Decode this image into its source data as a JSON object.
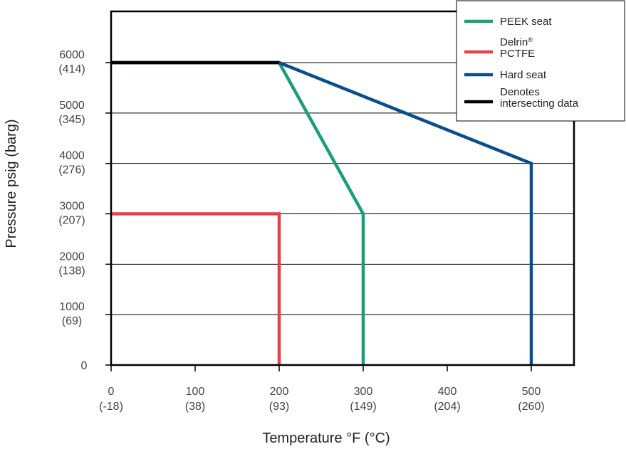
{
  "chart_data": {
    "type": "line",
    "xlabel": "Temperature °F (°C)",
    "ylabel": "Pressure psig (barg)",
    "xlim": [
      0,
      550
    ],
    "ylim": [
      0,
      7200
    ],
    "grid": "horizontal",
    "legend_placement": "top-right",
    "x_ticks": [
      {
        "value": 0,
        "line1": "0",
        "line2": "(-18)"
      },
      {
        "value": 100,
        "line1": "100",
        "line2": "(38)"
      },
      {
        "value": 200,
        "line1": "200",
        "line2": "(93)"
      },
      {
        "value": 300,
        "line1": "300",
        "line2": "(149)"
      },
      {
        "value": 400,
        "line1": "400",
        "line2": "(204)"
      },
      {
        "value": 500,
        "line1": "500",
        "line2": "(260)"
      }
    ],
    "y_ticks": [
      {
        "value": 0,
        "line1": "0",
        "line2": ""
      },
      {
        "value": 1000,
        "line1": "1000",
        "line2": "(69)"
      },
      {
        "value": 2000,
        "line1": "2000",
        "line2": "(138)"
      },
      {
        "value": 3000,
        "line1": "3000",
        "line2": "(207)"
      },
      {
        "value": 4000,
        "line1": "4000",
        "line2": "(276)"
      },
      {
        "value": 5000,
        "line1": "5000",
        "line2": "(345)"
      },
      {
        "value": 6000,
        "line1": "6000",
        "line2": "(414)"
      }
    ],
    "series": [
      {
        "key": "peek",
        "color": "#1a9e78",
        "points": [
          [
            0,
            6000
          ],
          [
            200,
            6000
          ],
          [
            300,
            3000
          ],
          [
            300,
            0
          ]
        ]
      },
      {
        "key": "delrin",
        "color": "#e8404a",
        "points": [
          [
            0,
            3000
          ],
          [
            200,
            3000
          ],
          [
            200,
            0
          ]
        ]
      },
      {
        "key": "hard",
        "color": "#0a4d8c",
        "points": [
          [
            0,
            6000
          ],
          [
            200,
            6000
          ],
          [
            500,
            4000
          ],
          [
            500,
            0
          ]
        ]
      },
      {
        "key": "intersect",
        "color": "#000000",
        "points": [
          [
            0,
            6000
          ],
          [
            200,
            6000
          ]
        ]
      }
    ],
    "legend": [
      {
        "key": "peek",
        "color": "#1a9e78",
        "lines": [
          "PEEK seat"
        ],
        "sup": ""
      },
      {
        "key": "delrin",
        "color": "#e8404a",
        "lines": [
          "Delrin",
          "PCTFE"
        ],
        "sup": "®"
      },
      {
        "key": "hard",
        "color": "#0a4d8c",
        "lines": [
          "Hard seat"
        ],
        "sup": ""
      },
      {
        "key": "intersect",
        "color": "#000000",
        "lines": [
          "Denotes",
          "intersecting data"
        ],
        "sup": ""
      }
    ]
  }
}
